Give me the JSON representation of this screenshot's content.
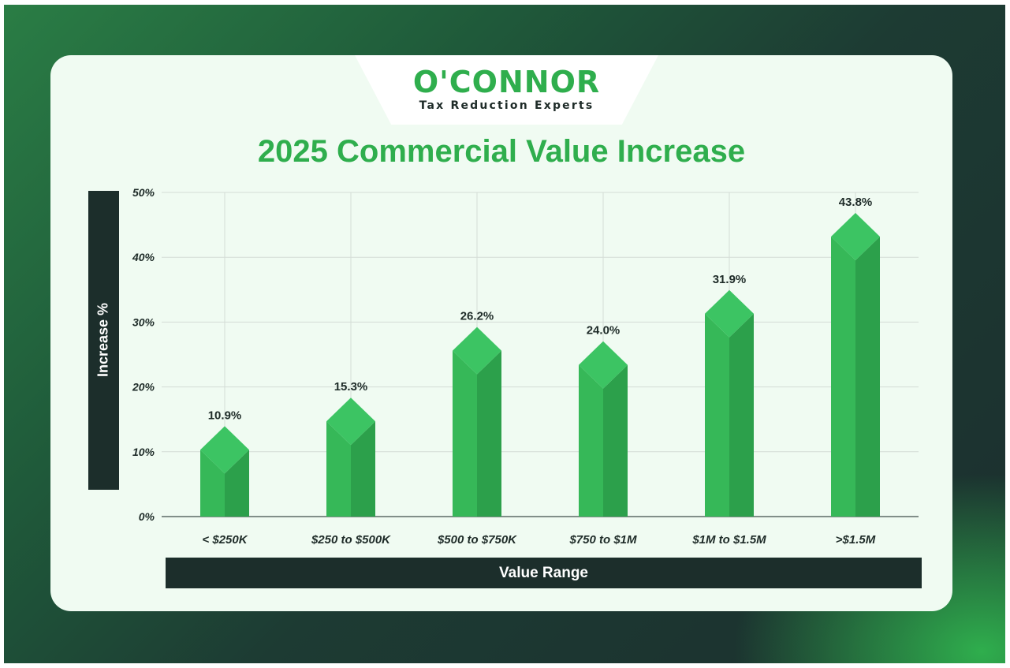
{
  "brand": {
    "name": "O'CONNOR",
    "tagline": "Tax Reduction Experts"
  },
  "colors": {
    "accent": "#2fae4d",
    "bar_light": "#36b858",
    "bar_dark": "#2ca04b",
    "bar_top": "#3cc463",
    "band": "#1c2e2b",
    "card": "#f0fbf2"
  },
  "chart_data": {
    "type": "bar",
    "title": "2025 Commercial Value Increase",
    "xlabel": "Value Range",
    "ylabel": "Increase %",
    "categories": [
      "< $250K",
      "$250 to $500K",
      "$500 to $750K",
      "$750 to $1M",
      "$1M to $1.5M",
      ">$1.5M"
    ],
    "values": [
      10.9,
      15.3,
      26.2,
      24.0,
      31.9,
      43.8
    ],
    "value_labels": [
      "10.9%",
      "15.3%",
      "26.2%",
      "24.0%",
      "31.9%",
      "43.8%"
    ],
    "yticks": [
      0,
      10,
      20,
      30,
      40,
      50
    ],
    "ytick_labels": [
      "0%",
      "10%",
      "20%",
      "30%",
      "40%",
      "50%"
    ],
    "ylim": [
      0,
      50
    ],
    "grid": true
  }
}
